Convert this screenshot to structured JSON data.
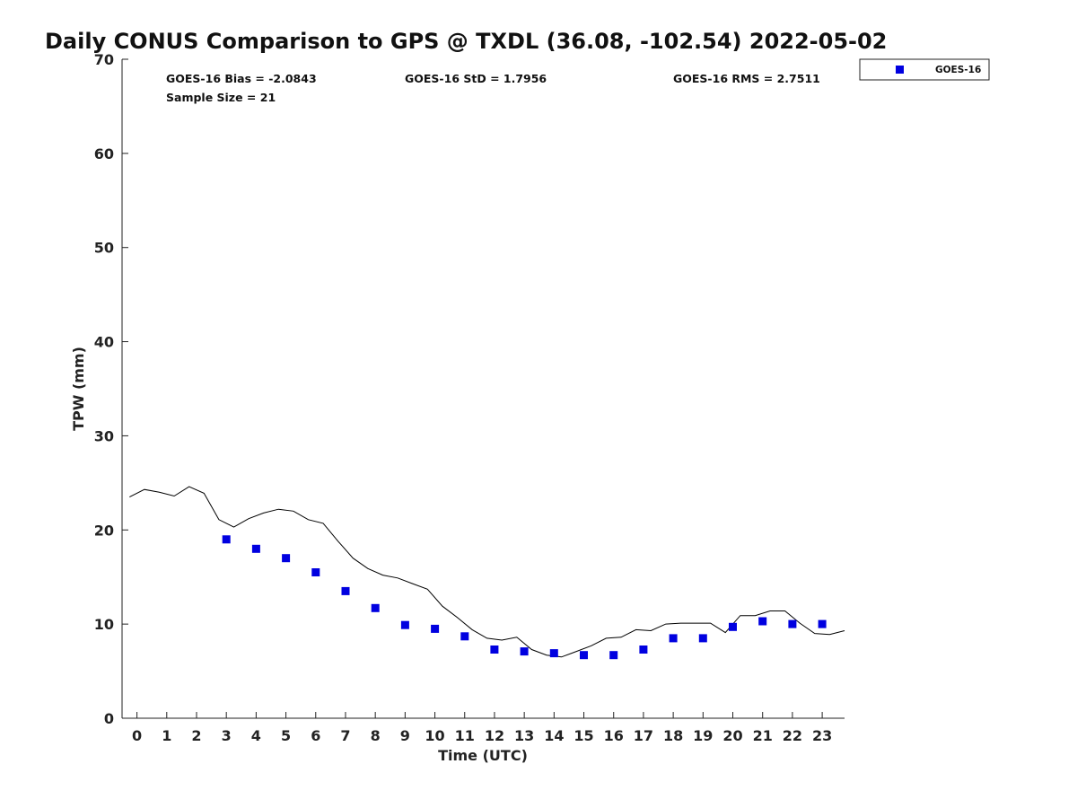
{
  "chart_data": {
    "type": "scatter",
    "title": "Daily CONUS Comparison to GPS @ TXDL (36.08, -102.54) 2022-05-02",
    "xlabel": "Time (UTC)",
    "ylabel": "TPW (mm)",
    "xlim": [
      -0.5,
      23.75
    ],
    "ylim": [
      0,
      70
    ],
    "x_ticks": [
      "0",
      "1",
      "2",
      "3",
      "4",
      "5",
      "6",
      "7",
      "8",
      "9",
      "10",
      "11",
      "12",
      "13",
      "14",
      "15",
      "16",
      "17",
      "18",
      "19",
      "20",
      "21",
      "22",
      "23"
    ],
    "y_ticks": [
      "0",
      "10",
      "20",
      "30",
      "40",
      "50",
      "60",
      "70"
    ],
    "grid": false,
    "legend_position": "top-right (outside plot)",
    "stats": {
      "bias": "GOES-16 Bias = -2.0843",
      "std": "GOES-16 StD = 1.7956",
      "rms": "GOES-16 RMS = 2.7511",
      "sample_size": "Sample Size = 21"
    },
    "series": [
      {
        "name": "GOES-16",
        "style": "markers",
        "color": "#0000e0",
        "x": [
          3,
          4,
          5,
          6,
          7,
          8,
          9,
          10,
          11,
          12,
          13,
          14,
          15,
          16,
          17,
          18,
          19,
          20,
          21,
          22,
          23
        ],
        "y": [
          19.0,
          18.0,
          17.0,
          15.5,
          13.5,
          11.7,
          9.9,
          9.5,
          8.7,
          7.3,
          7.1,
          6.9,
          6.7,
          6.7,
          7.3,
          8.5,
          8.5,
          9.7,
          10.3,
          10.0,
          10.0
        ]
      },
      {
        "style": "line",
        "color": "#000000",
        "x": [
          -0.25,
          0.25,
          0.75,
          1.25,
          1.75,
          2.25,
          2.75,
          3.25,
          3.75,
          4.25,
          4.75,
          5.25,
          5.75,
          6.25,
          6.75,
          7.25,
          7.75,
          8.25,
          8.75,
          9.25,
          9.75,
          10.25,
          10.75,
          11.25,
          11.75,
          12.25,
          12.75,
          13.25,
          13.75,
          14.25,
          14.75,
          15.25,
          15.75,
          16.25,
          16.75,
          17.25,
          17.75,
          18.25,
          18.75,
          19.25,
          19.75,
          20.25,
          20.75,
          21.25,
          21.75,
          22.25,
          22.75,
          23.25,
          23.75
        ],
        "y": [
          23.5,
          24.3,
          24.0,
          23.6,
          24.6,
          23.9,
          21.1,
          20.3,
          21.2,
          21.8,
          22.2,
          22.0,
          21.1,
          20.7,
          18.8,
          17.0,
          15.9,
          15.2,
          14.9,
          14.3,
          13.7,
          11.9,
          10.7,
          9.4,
          8.5,
          8.3,
          8.6,
          7.3,
          6.7,
          6.5,
          7.1,
          7.7,
          8.5,
          8.6,
          9.4,
          9.3,
          10.0,
          10.1,
          10.1,
          10.1,
          9.1,
          10.9,
          10.9,
          11.4,
          11.4,
          10.1,
          9.0,
          8.9,
          9.3
        ]
      }
    ]
  }
}
